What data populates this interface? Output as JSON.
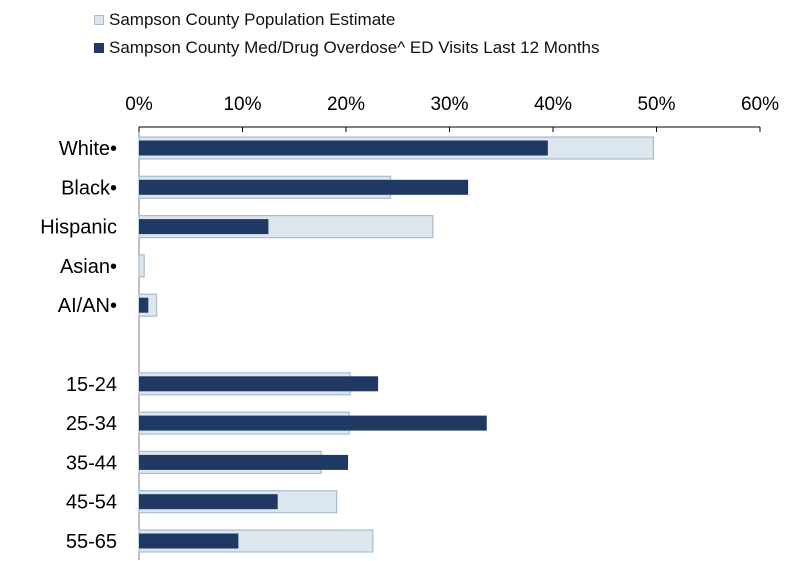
{
  "chart_data": {
    "type": "bar",
    "orientation": "horizontal",
    "title": "",
    "xlabel": "",
    "ylabel": "",
    "xlim": [
      0,
      60
    ],
    "x_ticks": [
      "0%",
      "10%",
      "20%",
      "30%",
      "40%",
      "50%",
      "60%"
    ],
    "x_tick_values": [
      0,
      10,
      20,
      30,
      40,
      50,
      60
    ],
    "axis_position": "top",
    "grid": false,
    "legend_position": "top",
    "categories": [
      "White•",
      "Black•",
      "Hispanic",
      "Asian•",
      "AI/AN•",
      "",
      "15-24",
      "25-34",
      "35-44",
      "45-54",
      "55-65"
    ],
    "series": [
      {
        "name": "Sampson County Population Estimate",
        "color": "#dce6ee",
        "border": "#a9bccd",
        "values": [
          49.7,
          24.3,
          28.4,
          0.5,
          1.7,
          null,
          20.4,
          20.3,
          17.6,
          19.1,
          22.6
        ]
      },
      {
        "name": "Sampson County Med/Drug Overdose^ ED Visits Last 12 Months",
        "color": "#1f3864",
        "values": [
          39.5,
          31.8,
          12.5,
          0,
          0.9,
          null,
          23.1,
          33.6,
          20.2,
          13.4,
          9.6
        ]
      }
    ]
  }
}
